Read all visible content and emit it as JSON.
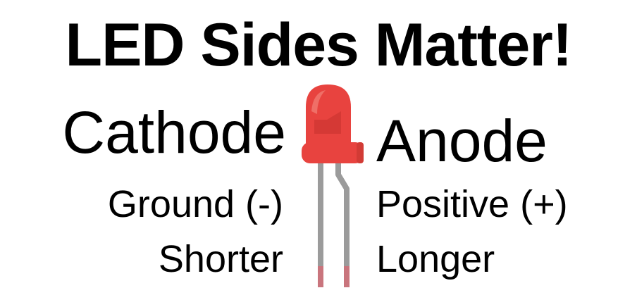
{
  "title": "LED Sides Matter!",
  "cathode": {
    "name": "Cathode",
    "polarity": "Ground (-)",
    "leg": "Shorter"
  },
  "anode": {
    "name": "Anode",
    "polarity": "Positive (+)",
    "leg": "Longer"
  },
  "colors": {
    "led_body": "#e8433f",
    "led_highlight": "#f07a72",
    "led_flat": "#d23b35",
    "leg": "#9b9b9b",
    "leg_tip": "#c9757d",
    "text": "#000000"
  },
  "icons": {
    "led": "red-led-icon"
  }
}
